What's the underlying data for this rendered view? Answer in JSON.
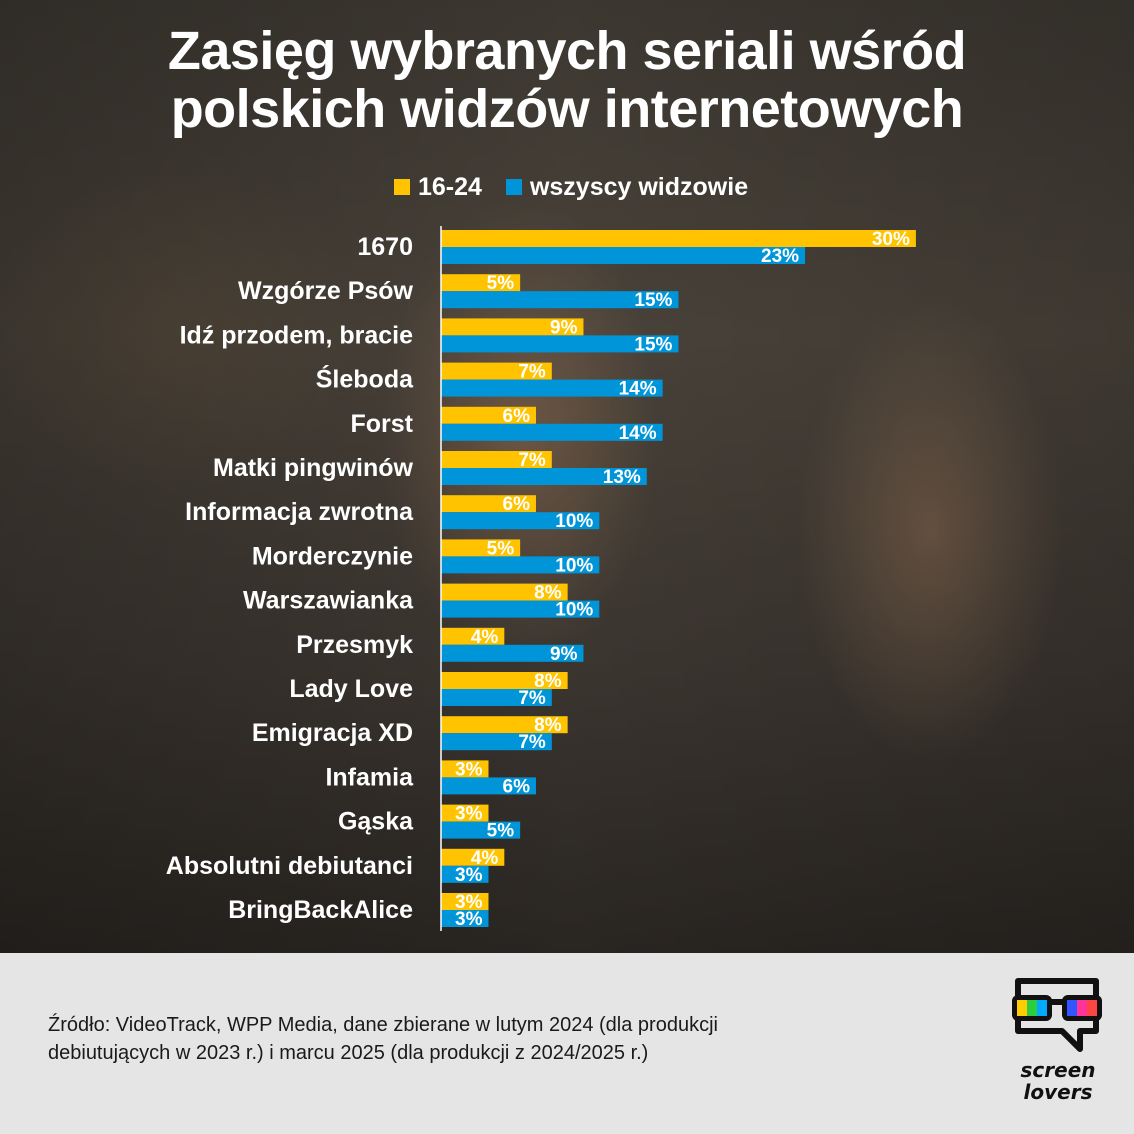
{
  "title": {
    "line1": "Zasięg wybranych seriali wśród",
    "line2": "polskich widzów internetowych"
  },
  "legend": [
    {
      "label": "16-24",
      "color": "#ffc300"
    },
    {
      "label": "wszyscy widzowie",
      "color": "#0095d9"
    }
  ],
  "chart_data": {
    "type": "bar",
    "orientation": "horizontal",
    "title": "Zasięg wybranych seriali wśród polskich widzów internetowych",
    "xlabel": "",
    "ylabel": "",
    "value_suffix": "%",
    "legend_position": "top",
    "grid": false,
    "xlim": [
      0,
      30
    ],
    "categories": [
      "1670",
      "Wzgórze Psów",
      "Idź przodem, bracie",
      "Śleboda",
      "Forst",
      "Matki pingwinów",
      "Informacja zwrotna",
      "Morderczynie",
      "Warszawianka",
      "Przesmyk",
      "Lady Love",
      "Emigracja XD",
      "Infamia",
      "Gąska",
      "Absolutni debiutanci",
      "BringBackAlice"
    ],
    "series": [
      {
        "name": "16-24",
        "color": "#ffc300",
        "values": [
          30,
          5,
          9,
          7,
          6,
          7,
          6,
          5,
          8,
          4,
          8,
          8,
          3,
          3,
          4,
          3
        ]
      },
      {
        "name": "wszyscy widzowie",
        "color": "#0095d9",
        "values": [
          23,
          15,
          15,
          14,
          14,
          13,
          10,
          10,
          10,
          9,
          7,
          7,
          6,
          5,
          3,
          3
        ]
      }
    ]
  },
  "footer": {
    "source_line1": "Źródło: VideoTrack, WPP Media, dane zbierane w lutym 2024 (dla produkcji",
    "source_line2": "debiutujących w 2023 r.) i marcu 2025 (dla produkcji z 2024/2025 r.)"
  },
  "logo": {
    "line1": "screen",
    "line2": "lovers"
  }
}
